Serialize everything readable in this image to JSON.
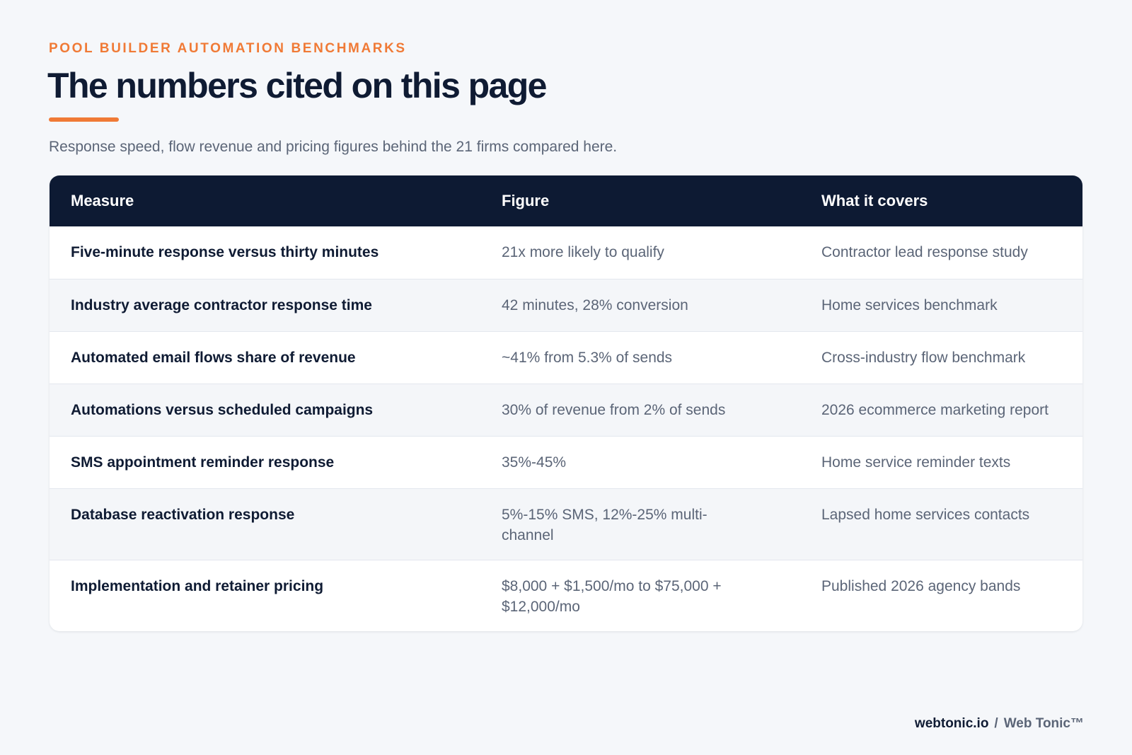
{
  "eyebrow": "POOL BUILDER AUTOMATION BENCHMARKS",
  "title": "The numbers cited on this page",
  "subtitle": "Response speed, flow revenue and pricing figures behind the 21 firms compared here.",
  "table": {
    "headers": [
      "Measure",
      "Figure",
      "What it covers"
    ],
    "rows": [
      {
        "measure": "Five-minute response versus thirty minutes",
        "figure": "21x more likely to qualify",
        "covers": "Contractor lead response study"
      },
      {
        "measure": "Industry average contractor response time",
        "figure": "42 minutes, 28% conversion",
        "covers": "Home services benchmark"
      },
      {
        "measure": "Automated email flows share of revenue",
        "figure": "~41% from 5.3% of sends",
        "covers": "Cross-industry flow benchmark"
      },
      {
        "measure": "Automations versus scheduled campaigns",
        "figure": "30% of revenue from 2% of sends",
        "covers": "2026 ecommerce marketing report"
      },
      {
        "measure": "SMS appointment reminder response",
        "figure": "35%-45%",
        "covers": "Home service reminder texts"
      },
      {
        "measure": "Database reactivation response",
        "figure": "5%-15% SMS, 12%-25% multi-channel",
        "covers": "Lapsed home services contacts"
      },
      {
        "measure": "Implementation and retainer pricing",
        "figure": "$8,000 + $1,500/mo to $75,000 + $12,000/mo",
        "covers": "Published 2026 agency bands"
      }
    ]
  },
  "footer": {
    "site": "webtonic.io",
    "separator": "/",
    "brand": "Web Tonic™"
  },
  "colors": {
    "accent": "#f07a36",
    "header_bg": "#0d1a33",
    "page_bg": "#f5f7fa",
    "text_dark": "#0f1b33",
    "text_muted": "#5b6577"
  }
}
